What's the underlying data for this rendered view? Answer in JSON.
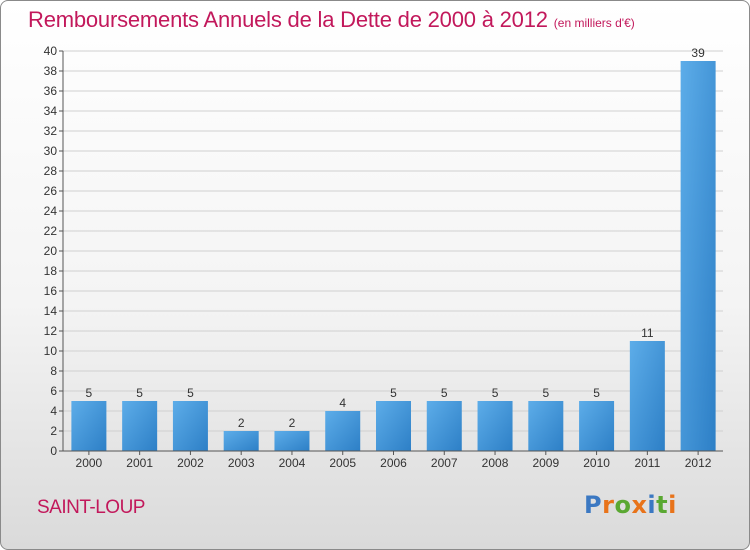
{
  "header": {
    "title": "Remboursements Annuels de la Dette de 2000 à 2012",
    "subtitle": "(en milliers d'€)"
  },
  "footer": {
    "commune": "SAINT-LOUP",
    "brand": "Proxiti"
  },
  "colors": {
    "title": "#c2185b",
    "bar_light": "#5dade9",
    "bar_dark": "#2d7fc6",
    "grid": "#d0d0d0",
    "axis": "#555555",
    "label": "#333333"
  },
  "chart_data": {
    "type": "bar",
    "title": "Remboursements Annuels de la Dette de 2000 à 2012",
    "subtitle": "(en milliers d'€)",
    "xlabel": "",
    "ylabel": "",
    "categories": [
      "2000",
      "2001",
      "2002",
      "2003",
      "2004",
      "2005",
      "2006",
      "2007",
      "2008",
      "2009",
      "2010",
      "2011",
      "2012"
    ],
    "values": [
      5,
      5,
      5,
      2,
      2,
      4,
      5,
      5,
      5,
      5,
      5,
      11,
      39
    ],
    "data_labels": [
      "5",
      "5",
      "5",
      "2",
      "2",
      "4",
      "5",
      "5",
      "5",
      "5",
      "5",
      "11",
      "39"
    ],
    "ylim": [
      0,
      40
    ],
    "yticks": [
      0,
      2,
      4,
      6,
      8,
      10,
      12,
      14,
      16,
      18,
      20,
      22,
      24,
      26,
      28,
      30,
      32,
      34,
      36,
      38,
      40
    ],
    "grid": true,
    "legend": "none"
  }
}
